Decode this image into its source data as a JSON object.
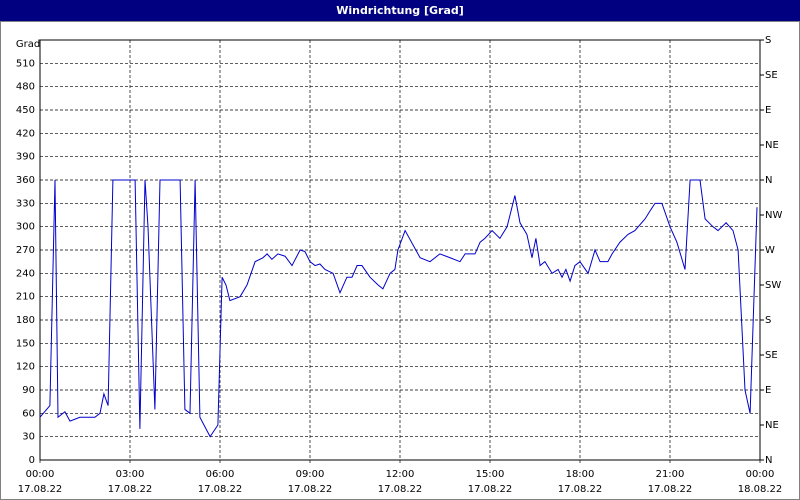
{
  "chart_data": {
    "type": "line",
    "title": "Windrichtung [Grad]",
    "y_label": "Grad",
    "x": [
      0,
      0.33,
      0.5,
      0.6,
      0.83,
      1,
      1.33,
      1.83,
      2,
      2.13,
      2.27,
      2.43,
      3.17,
      3.33,
      3.5,
      3.6,
      3.83,
      4,
      4.67,
      4.83,
      5,
      5.17,
      5.33,
      5.67,
      5.93,
      6.07,
      6.2,
      6.33,
      6.67,
      6.9,
      7.17,
      7.43,
      7.57,
      7.73,
      7.93,
      8.17,
      8.4,
      8.67,
      8.83,
      9.0,
      9.17,
      9.33,
      9.5,
      9.77,
      10.0,
      10.23,
      10.4,
      10.57,
      10.73,
      11.0,
      11.27,
      11.43,
      11.67,
      11.83,
      11.93,
      12.17,
      12.67,
      13.0,
      13.33,
      13.67,
      14.0,
      14.17,
      14.5,
      14.67,
      14.83,
      15.07,
      15.33,
      15.57,
      15.83,
      16.0,
      16.23,
      16.4,
      16.53,
      16.67,
      16.83,
      17.07,
      17.27,
      17.4,
      17.53,
      17.67,
      17.83,
      18.0,
      18.27,
      18.5,
      18.67,
      18.93,
      19.07,
      19.33,
      19.6,
      19.83,
      20.17,
      20.33,
      20.5,
      20.73,
      21.0,
      21.23,
      21.5,
      21.67,
      22.0,
      22.17,
      22.43,
      22.6,
      22.87,
      23.1,
      23.27,
      23.5,
      23.67,
      23.9
    ],
    "series": [
      {
        "name": "Windrichtung",
        "color": "#0000cc",
        "values": [
          55,
          70,
          360,
          55,
          62,
          50,
          55,
          55,
          60,
          85,
          70,
          360,
          360,
          40,
          360,
          300,
          65,
          360,
          360,
          65,
          60,
          360,
          55,
          30,
          45,
          235,
          225,
          205,
          210,
          225,
          255,
          260,
          265,
          258,
          265,
          262,
          250,
          270,
          268,
          255,
          250,
          252,
          245,
          240,
          215,
          235,
          235,
          250,
          250,
          235,
          225,
          220,
          240,
          245,
          270,
          295,
          260,
          255,
          265,
          260,
          255,
          265,
          265,
          280,
          285,
          295,
          285,
          300,
          340,
          305,
          290,
          260,
          285,
          250,
          255,
          240,
          245,
          235,
          245,
          230,
          250,
          255,
          240,
          270,
          255,
          255,
          265,
          280,
          290,
          295,
          310,
          320,
          330,
          330,
          300,
          280,
          245,
          360,
          360,
          310,
          300,
          295,
          305,
          295,
          270,
          90,
          60,
          325
        ]
      }
    ],
    "xlim": [
      0,
      24
    ],
    "xticks": [
      {
        "value": 0,
        "label": "00:00",
        "date": "17.08.22"
      },
      {
        "value": 3,
        "label": "03:00",
        "date": "17.08.22"
      },
      {
        "value": 6,
        "label": "06:00",
        "date": "17.08.22"
      },
      {
        "value": 9,
        "label": "09:00",
        "date": "17.08.22"
      },
      {
        "value": 12,
        "label": "12:00",
        "date": "17.08.22"
      },
      {
        "value": 15,
        "label": "15:00",
        "date": "17.08.22"
      },
      {
        "value": 18,
        "label": "18:00",
        "date": "17.08.22"
      },
      {
        "value": 21,
        "label": "21:00",
        "date": "17.08.22"
      },
      {
        "value": 24,
        "label": "00:00",
        "date": "18.08.22"
      }
    ],
    "ylim": [
      0,
      540
    ],
    "yticks": [
      0,
      30,
      60,
      90,
      120,
      150,
      180,
      210,
      240,
      270,
      300,
      330,
      360,
      390,
      420,
      450,
      480,
      510
    ],
    "y2lim": [
      0,
      540
    ],
    "y2ticks": [
      {
        "value": 0,
        "label": "N"
      },
      {
        "value": 45,
        "label": "NE"
      },
      {
        "value": 90,
        "label": "E"
      },
      {
        "value": 135,
        "label": "SE"
      },
      {
        "value": 180,
        "label": "S"
      },
      {
        "value": 225,
        "label": "SW"
      },
      {
        "value": 270,
        "label": "W"
      },
      {
        "value": 315,
        "label": "NW"
      },
      {
        "value": 360,
        "label": "N"
      },
      {
        "value": 405,
        "label": "NE"
      },
      {
        "value": 450,
        "label": "E"
      },
      {
        "value": 495,
        "label": "SE"
      },
      {
        "value": 540,
        "label": "S"
      }
    ],
    "grid": true
  }
}
